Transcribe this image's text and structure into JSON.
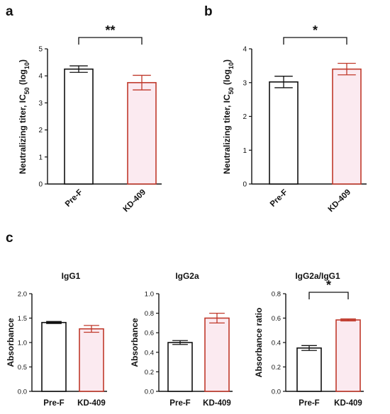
{
  "colors": {
    "pref": "#111111",
    "kd": "#c0392b",
    "kd_fill": "#fbeaf0",
    "axis": "#111111"
  },
  "chart_data": [
    {
      "panel": "a",
      "type": "bar",
      "categories": [
        "Pre-F",
        "KD-409"
      ],
      "values": [
        4.25,
        3.75
      ],
      "errors": [
        0.12,
        0.27
      ],
      "ylabel_main": "Neutralizing titer, IC",
      "ylabel_sub": "50",
      "ylabel_tail": " (log",
      "ylabel_sub2": "10",
      "ylabel_end": ")",
      "ylim": [
        0,
        5
      ],
      "yticks": [
        "0",
        "1",
        "2",
        "3",
        "4",
        "5"
      ],
      "significance": "**"
    },
    {
      "panel": "b",
      "type": "bar",
      "categories": [
        "Pre-F",
        "KD-409"
      ],
      "values": [
        3.02,
        3.4
      ],
      "errors": [
        0.17,
        0.17
      ],
      "ylabel_main": "Neutralizing titer, IC",
      "ylabel_sub": "50",
      "ylabel_tail": " (log",
      "ylabel_sub2": "10",
      "ylabel_end": ")",
      "ylim": [
        0,
        4
      ],
      "yticks": [
        "0",
        "1",
        "2",
        "3",
        "4"
      ],
      "significance": "*"
    },
    {
      "panel": "c",
      "type": "bar",
      "title": "IgG1",
      "categories": [
        "Pre-F",
        "KD-409"
      ],
      "values": [
        1.41,
        1.28
      ],
      "errors": [
        0.02,
        0.07
      ],
      "ylabel": "Absorbance",
      "ylim": [
        0,
        2.0
      ],
      "yticks": [
        "0.0",
        "0.5",
        "1.0",
        "1.5",
        "2.0"
      ],
      "significance": ""
    },
    {
      "panel": "",
      "type": "bar",
      "title": "IgG2a",
      "categories": [
        "Pre-F",
        "KD-409"
      ],
      "values": [
        0.5,
        0.75
      ],
      "errors": [
        0.02,
        0.05
      ],
      "ylabel": "Absorbance",
      "ylim": [
        0,
        1.0
      ],
      "yticks": [
        "0.0",
        "0.2",
        "0.4",
        "0.6",
        "0.8",
        "1.0"
      ],
      "significance": ""
    },
    {
      "panel": "",
      "type": "bar",
      "title": "IgG2a/IgG1",
      "categories": [
        "Pre-F",
        "KD-409"
      ],
      "values": [
        0.355,
        0.585
      ],
      "errors": [
        0.02,
        0.008
      ],
      "ylabel": "Absorbance ratio",
      "ylim": [
        0,
        0.8
      ],
      "yticks": [
        "0.0",
        "0.2",
        "0.4",
        "0.6",
        "0.8"
      ],
      "significance": "*"
    }
  ]
}
